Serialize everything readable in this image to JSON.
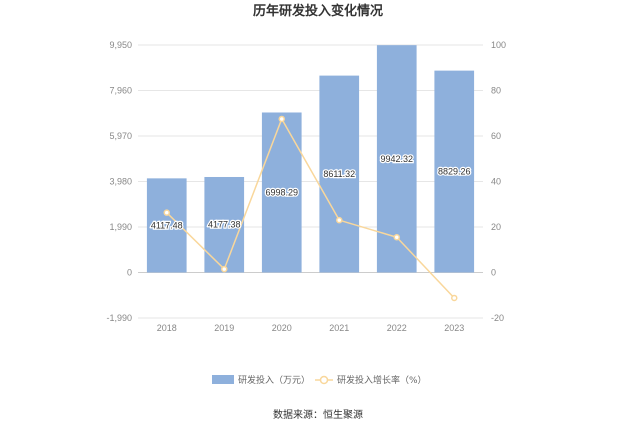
{
  "chart_data": {
    "type": "bar",
    "title": "历年研发投入变化情况",
    "categories": [
      "2018",
      "2019",
      "2020",
      "2021",
      "2022",
      "2023"
    ],
    "series": [
      {
        "name": "研发投入（万元）",
        "kind": "bar",
        "axis": "left",
        "color": "#8eb0dc",
        "values": [
          4117.48,
          4177.38,
          6998.29,
          8611.32,
          9942.32,
          8829.26
        ],
        "labels": [
          "4117.48",
          "4177.38",
          "6998.29",
          "8611.32",
          "9942.32",
          "8829.26"
        ]
      },
      {
        "name": "研发投入增长率（%）",
        "kind": "line",
        "axis": "right",
        "color": "#f9d79b",
        "values": [
          26.3,
          1.5,
          67.5,
          23.0,
          15.5,
          -11.2
        ]
      }
    ],
    "y_left": {
      "ticks": [
        "9,950",
        "7,960",
        "5,970",
        "3,980",
        "1,990",
        "0",
        "-1,990"
      ],
      "ylim": [
        -1990,
        9950
      ]
    },
    "y_right": {
      "ticks": [
        "100",
        "80",
        "60",
        "40",
        "20",
        "0",
        "-20"
      ],
      "ylim": [
        -20,
        100
      ]
    },
    "legend_position": "bottom",
    "grid": true
  },
  "source": "数据来源：恒生聚源"
}
